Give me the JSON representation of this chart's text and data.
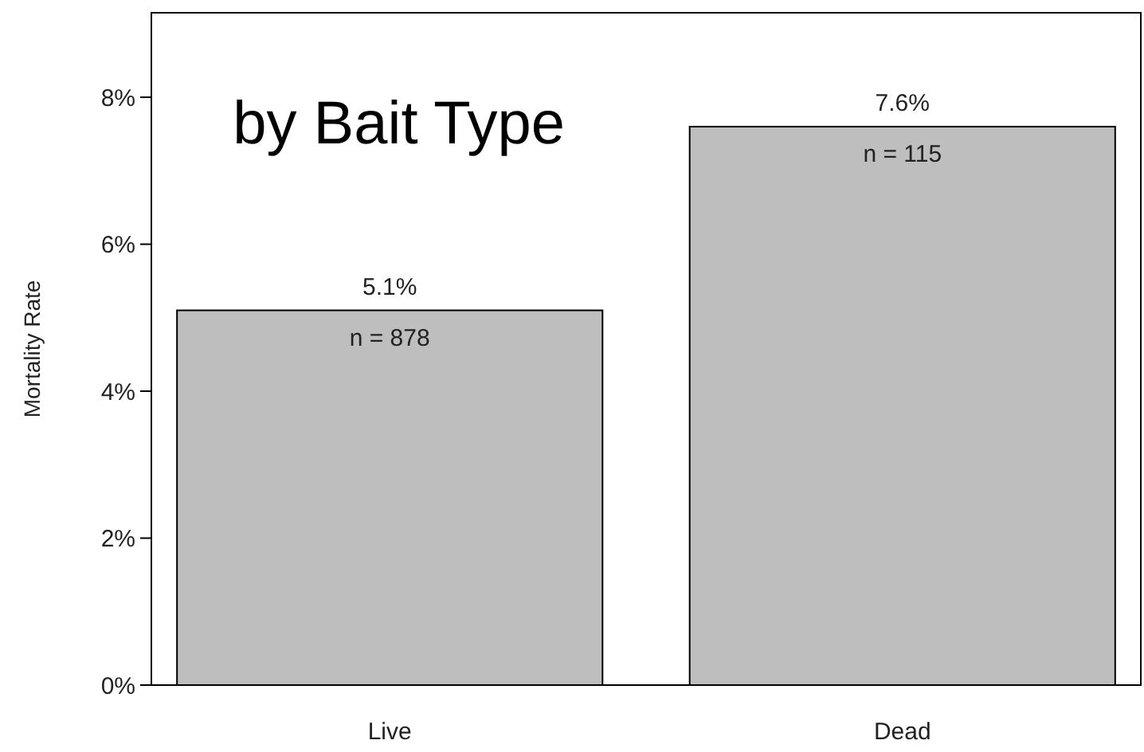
{
  "chart_data": {
    "type": "bar",
    "title": "by Bait Type",
    "ylabel": "Mortality Rate",
    "categories": [
      "Live",
      "Dead"
    ],
    "values": [
      5.1,
      7.6
    ],
    "color": "#bebebe",
    "value_labels": [
      "5.1%",
      "7.6%"
    ],
    "annotations": [
      {
        "text": "n = 878",
        "x": "Live",
        "y": 5.1
      },
      {
        "text": "n = 115",
        "x": "Dead",
        "y": 7.6
      }
    ],
    "ylim": [
      0,
      9.15
    ],
    "yticks": [
      {
        "value": 0,
        "label": "0%"
      },
      {
        "value": 2,
        "label": "2%"
      },
      {
        "value": 4,
        "label": "4%"
      },
      {
        "value": 6,
        "label": "6%"
      },
      {
        "value": 8,
        "label": "8%"
      }
    ],
    "grid": false
  }
}
